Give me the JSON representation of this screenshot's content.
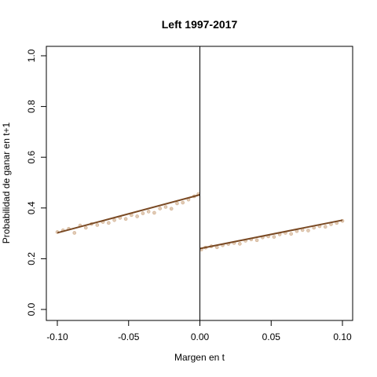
{
  "chart_data": {
    "type": "scatter",
    "title": "Left 1997-2017",
    "xlabel": "Margen en t",
    "ylabel": "Probabilidad de ganar en t+1",
    "xlim": [
      -0.1,
      0.1
    ],
    "ylim": [
      0.0,
      1.0
    ],
    "x_ticks": [
      "-0.10",
      "-0.05",
      "0.00",
      "0.05",
      "0.10"
    ],
    "y_ticks": [
      "0.0",
      "0.2",
      "0.4",
      "0.6",
      "0.8",
      "1.0"
    ],
    "cutoff": 0.0,
    "grid": false,
    "legend": "none",
    "point_color": "#c8a07a",
    "line_color": "#7a4a24",
    "series": [
      {
        "side": "left",
        "fit_line": {
          "x": [
            -0.1,
            0.0
          ],
          "y": [
            0.302,
            0.452
          ]
        },
        "points": {
          "x": [
            -0.1,
            -0.096,
            -0.092,
            -0.088,
            -0.084,
            -0.08,
            -0.076,
            -0.072,
            -0.068,
            -0.064,
            -0.06,
            -0.056,
            -0.052,
            -0.048,
            -0.044,
            -0.04,
            -0.036,
            -0.032,
            -0.028,
            -0.024,
            -0.02,
            -0.016,
            -0.012,
            -0.008,
            -0.004,
            -0.001
          ],
          "y": [
            0.305,
            0.312,
            0.318,
            0.302,
            0.331,
            0.322,
            0.337,
            0.333,
            0.345,
            0.341,
            0.352,
            0.361,
            0.357,
            0.372,
            0.367,
            0.379,
            0.386,
            0.381,
            0.398,
            0.404,
            0.397,
            0.418,
            0.421,
            0.433,
            0.446,
            0.455
          ]
        }
      },
      {
        "side": "right",
        "fit_line": {
          "x": [
            0.0,
            0.1
          ],
          "y": [
            0.24,
            0.352
          ]
        },
        "points": {
          "x": [
            0.001,
            0.004,
            0.008,
            0.012,
            0.016,
            0.02,
            0.024,
            0.028,
            0.032,
            0.036,
            0.04,
            0.044,
            0.048,
            0.052,
            0.056,
            0.06,
            0.064,
            0.068,
            0.072,
            0.076,
            0.08,
            0.084,
            0.088,
            0.092,
            0.096,
            0.1
          ],
          "y": [
            0.236,
            0.244,
            0.249,
            0.245,
            0.253,
            0.258,
            0.262,
            0.259,
            0.271,
            0.276,
            0.273,
            0.284,
            0.288,
            0.286,
            0.296,
            0.302,
            0.298,
            0.309,
            0.313,
            0.311,
            0.322,
            0.328,
            0.326,
            0.336,
            0.341,
            0.349
          ]
        }
      }
    ]
  }
}
